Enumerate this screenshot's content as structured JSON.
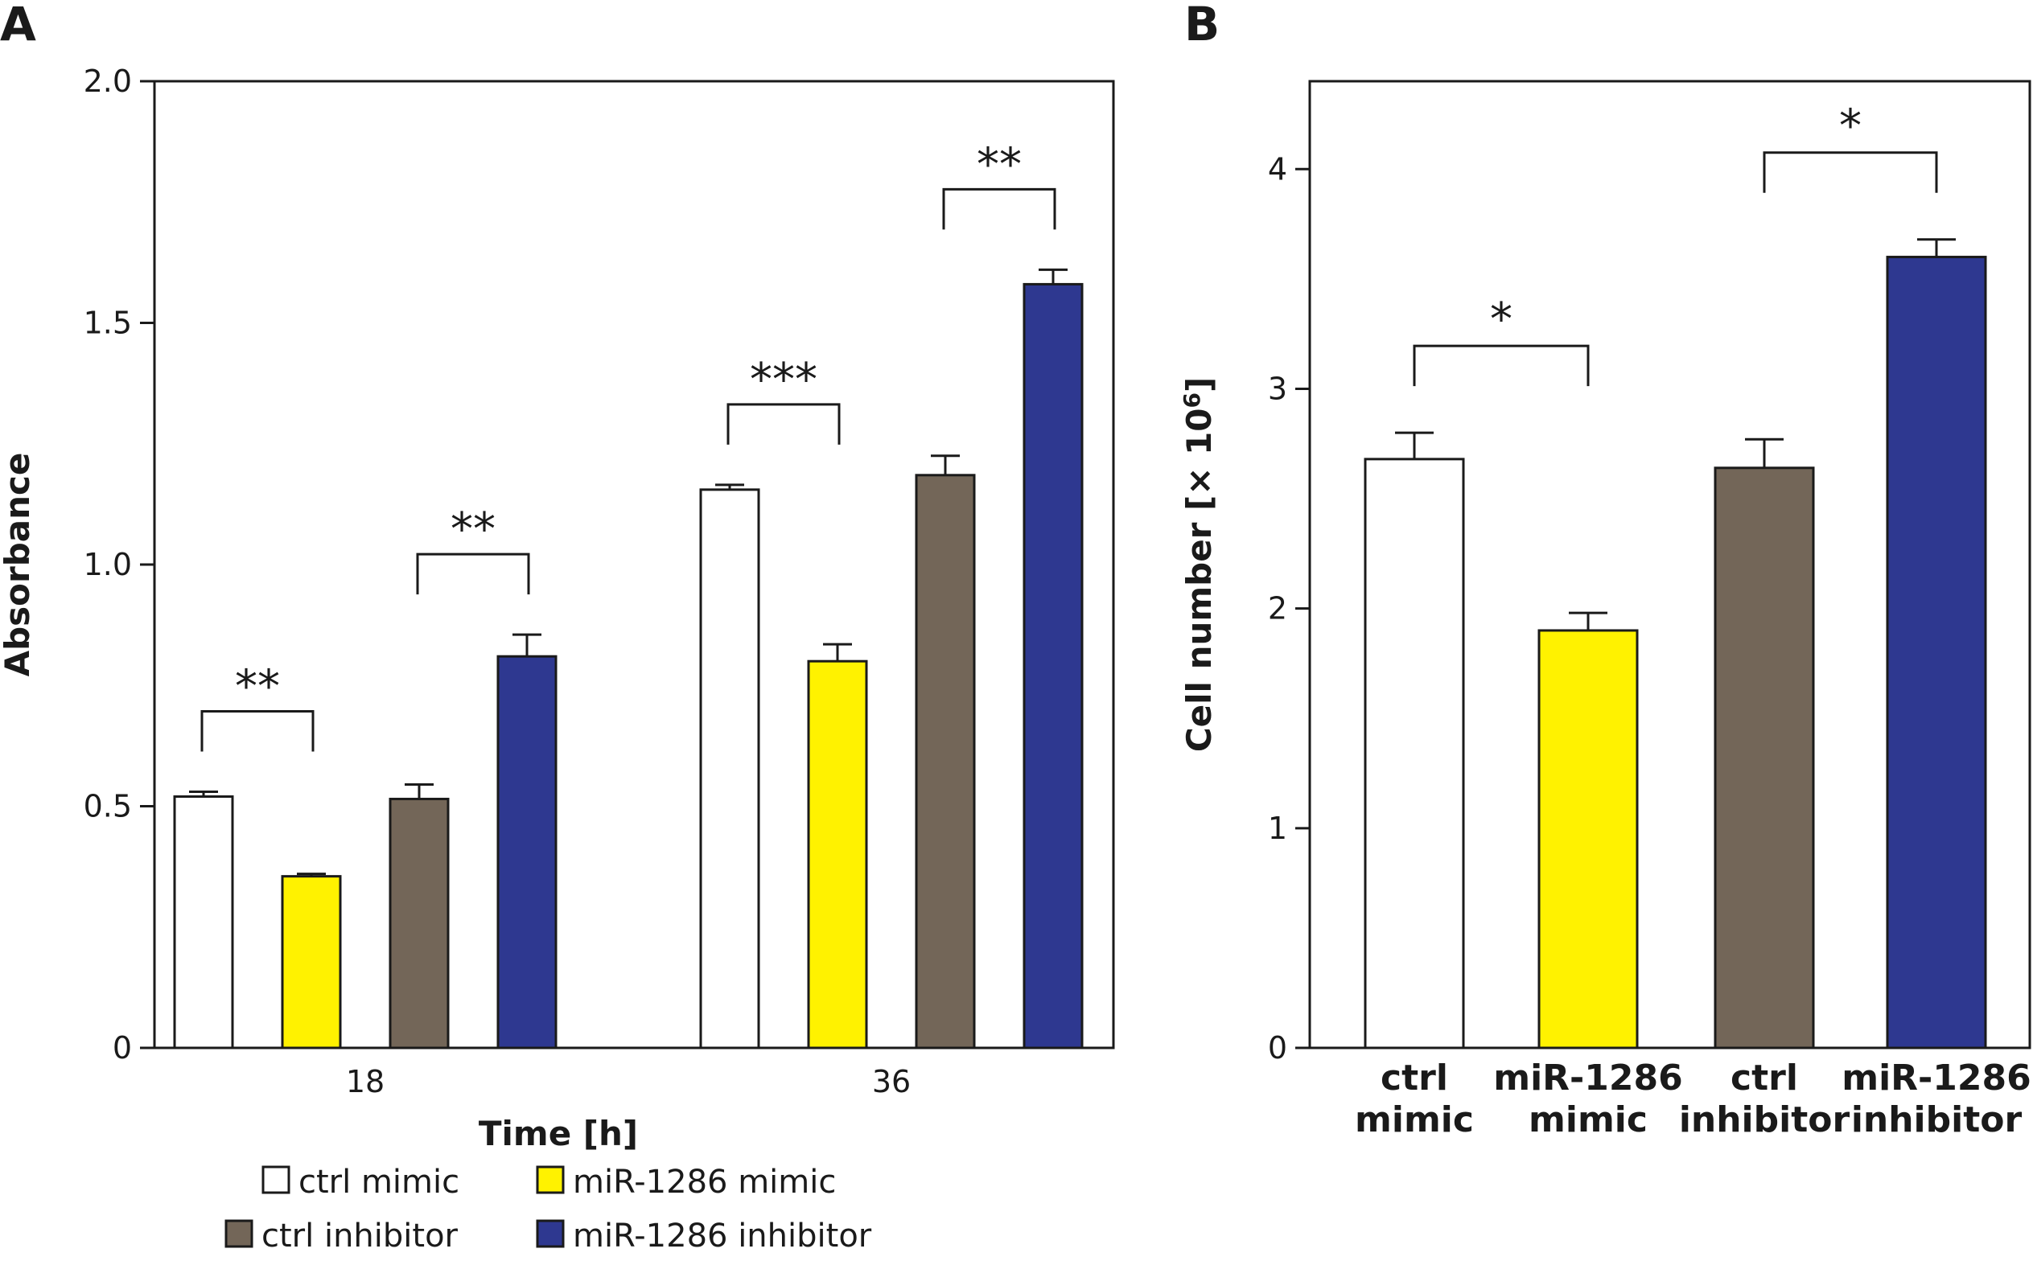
{
  "colors": {
    "ctrl_mimic": "#ffffff",
    "mir_mimic": "#fff200",
    "ctrl_inhibitor": "#736658",
    "mir_inhibitor": "#2e3890"
  },
  "chart_data": [
    {
      "panel": "A",
      "type": "bar",
      "xlabel": "Time [h]",
      "ylabel": "Absorbance",
      "ylim": [
        0,
        2.0
      ],
      "yticks": [
        "0",
        "0.5",
        "1.0",
        "1.5",
        "2.0"
      ],
      "categories": [
        "18",
        "36"
      ],
      "series": [
        {
          "name": "ctrl mimic",
          "values": [
            0.52,
            1.155
          ],
          "errors": [
            0.01,
            0.01
          ]
        },
        {
          "name": "miR-1286 mimic",
          "values": [
            0.355,
            0.8
          ],
          "errors": [
            0.005,
            0.035
          ]
        },
        {
          "name": "ctrl inhibitor",
          "values": [
            0.515,
            1.185
          ],
          "errors": [
            0.03,
            0.04
          ]
        },
        {
          "name": "miR-1286 inhibitor",
          "values": [
            0.81,
            1.58
          ],
          "errors": [
            0.045,
            0.03
          ]
        }
      ],
      "significance": [
        {
          "label": "**",
          "group": 0,
          "from": 0,
          "to": 1
        },
        {
          "label": "**",
          "group": 0,
          "from": 2,
          "to": 3
        },
        {
          "label": "***",
          "group": 1,
          "from": 0,
          "to": 1
        },
        {
          "label": "**",
          "group": 1,
          "from": 2,
          "to": 3
        }
      ],
      "legend": [
        "ctrl mimic",
        "miR-1286 mimic",
        "ctrl inhibitor",
        "miR-1286 inhibitor"
      ],
      "legend_position": "bottom",
      "grid": false
    },
    {
      "panel": "B",
      "type": "bar",
      "ylabel": "Cell number [× 10",
      "ylabel_sup": "6",
      "ylabel_end": "]",
      "ylim": [
        0,
        4.4
      ],
      "yticks": [
        "0",
        "1",
        "2",
        "3",
        "4"
      ],
      "categories": [
        [
          "ctrl",
          "mimic"
        ],
        [
          "miR-1286",
          "mimic"
        ],
        [
          "ctrl",
          "inhibitor"
        ],
        [
          "miR-1286",
          "inhibitor"
        ]
      ],
      "values": [
        2.68,
        1.9,
        2.64,
        3.6
      ],
      "errors": [
        0.12,
        0.08,
        0.13,
        0.08
      ],
      "significance": [
        {
          "label": "*",
          "from": 0,
          "to": 1
        },
        {
          "label": "*",
          "from": 2,
          "to": 3
        }
      ],
      "grid": false
    }
  ]
}
